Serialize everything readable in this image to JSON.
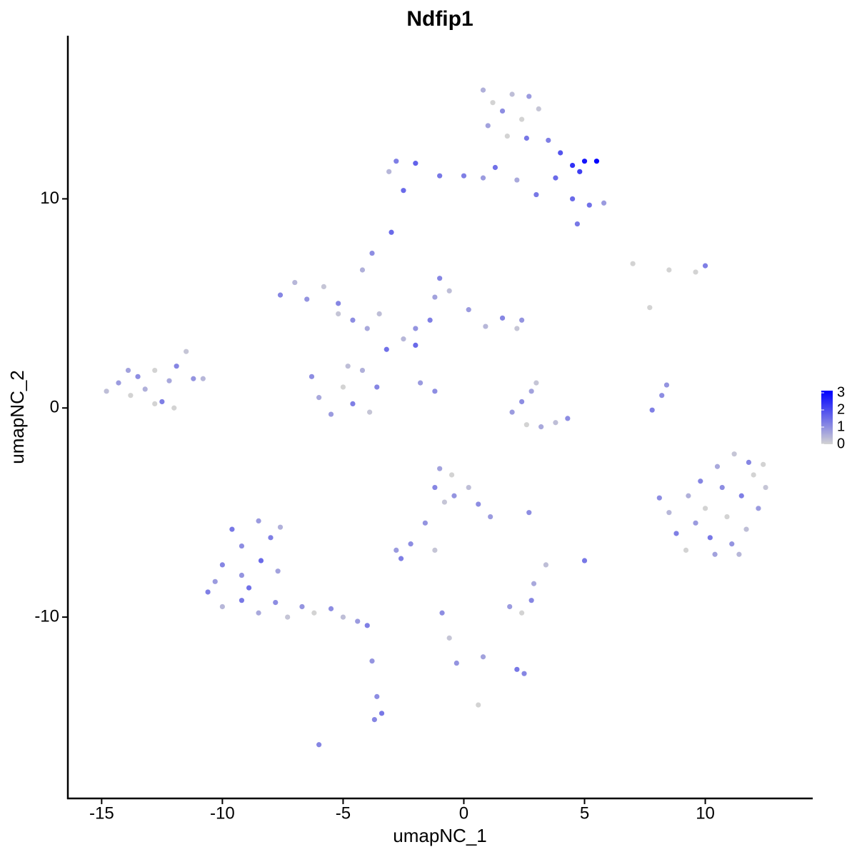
{
  "chart_data": {
    "type": "scatter",
    "title": "Ndfip1",
    "x_label": "umapNC_1",
    "y_label": "umapNC_2",
    "xlim": [
      -16.4,
      14.45
    ],
    "ylim": [
      -18.67,
      17.8
    ],
    "xticks": [
      -15,
      -10,
      -5,
      0,
      5,
      10
    ],
    "yticks": [
      -10,
      0,
      10
    ],
    "color_scale": {
      "low": "#d3d3d3",
      "high": "#0000ff",
      "lim": [
        0,
        3
      ],
      "ticks": [
        0,
        1,
        2,
        3
      ]
    },
    "x": [
      -14.8,
      -14.3,
      -13.8,
      -13.5,
      -13.2,
      -12.8,
      -12.5,
      -12.2,
      -12.8,
      -11.9,
      -11.5,
      -11.2,
      -10.8,
      -12,
      -13.9,
      0.8,
      1.2,
      1.6,
      2.0,
      2.4,
      2.7,
      3.1,
      1.0,
      1.8,
      2.6,
      3.5,
      4.0,
      4.5,
      5.0,
      5.5,
      4.8,
      3.8,
      1.3,
      0.8,
      0,
      -1,
      -2,
      -2.8,
      -3.1,
      -2.5,
      -3,
      4.5,
      5.2,
      5.8,
      4.7,
      3,
      2.2,
      -7.6,
      -7.0,
      -6.5,
      -5.8,
      -5.2,
      -4.6,
      -4.0,
      -3.5,
      -3.8,
      -4.2,
      -3.2,
      -2.5,
      -2,
      -1.4,
      -1.2,
      -1.0,
      -0.6,
      0.2,
      0.9,
      1.6,
      2.2,
      2.4,
      -6.3,
      -6.0,
      -5.5,
      -5.0,
      -4.6,
      -4.2,
      -3.9,
      -3.6,
      -4.8,
      -1.8,
      -1.2,
      -2.0,
      -5.2,
      2.0,
      2.6,
      3.2,
      3.8,
      4.3,
      2.8,
      3.0,
      2.4,
      7.8,
      8.2,
      8.4,
      8.1,
      8.5,
      8.8,
      9.2,
      9.6,
      9.8,
      10.0,
      10.2,
      10.5,
      10.7,
      10.9,
      11.1,
      11.2,
      11.5,
      11.7,
      12.0,
      12.2,
      12.5,
      11.8,
      9.3,
      10.4,
      12.4,
      11.4,
      7.0,
      8.5,
      9.6,
      10.0,
      7.7,
      -9.6,
      -9.2,
      -8.5,
      -8.0,
      -7.6,
      -10.0,
      -9.2,
      -8.4,
      -7.7,
      -10.6,
      -10.0,
      -9.2,
      -8.5,
      -7.8,
      -7.3,
      -6.7,
      -6.2,
      -5.5,
      -5.0,
      -4.4,
      -4.0,
      -8.9,
      -10.3,
      -1.0,
      -0.5,
      -1.2,
      -0.4,
      0.2,
      0.6,
      1.1,
      -0.8,
      -1.6,
      -2.2,
      -2.8,
      -2.6,
      -3.8,
      -3.6,
      -3.7,
      -3.4,
      -6.0,
      -0.6,
      -0.3,
      0.8,
      2.2,
      2.5,
      0.6,
      -0.9,
      1.9,
      2.4,
      2.8,
      2.9,
      3.4,
      5.0,
      2.7,
      -1.2
    ],
    "y": [
      0.8,
      1.2,
      0.6,
      1.5,
      0.9,
      1.8,
      0.3,
      1.3,
      0.2,
      2.0,
      2.7,
      1.4,
      1.4,
      0,
      1.8,
      15.2,
      14.6,
      14.2,
      15.0,
      13.8,
      14.9,
      14.3,
      13.5,
      13.0,
      12.9,
      12.8,
      12.2,
      11.6,
      11.8,
      11.8,
      11.3,
      11.0,
      11.5,
      11.0,
      11.1,
      11.1,
      11.7,
      11.8,
      11.3,
      10.4,
      8.4,
      10.0,
      9.7,
      9.8,
      8.8,
      10.2,
      10.9,
      5.4,
      6.0,
      5.2,
      5.8,
      5.0,
      4.2,
      3.8,
      4.5,
      7.4,
      6.6,
      2.8,
      3.3,
      3.8,
      4.2,
      5.3,
      6.2,
      5.6,
      4.7,
      3.9,
      4.3,
      3.8,
      4.2,
      1.5,
      0.5,
      -0.3,
      1.0,
      0.2,
      1.8,
      -0.2,
      1.0,
      2.0,
      1.2,
      0.8,
      3.0,
      4.5,
      -0.2,
      -0.8,
      -0.9,
      -0.7,
      -0.5,
      0.8,
      1.2,
      0.3,
      -0.1,
      0.6,
      1.1,
      -4.3,
      -5.0,
      -6.0,
      -6.8,
      -5.5,
      -3.5,
      -4.8,
      -6.2,
      -2.8,
      -3.8,
      -5.2,
      -6.5,
      -2.2,
      -4.2,
      -5.8,
      -3.2,
      -4.8,
      -3.8,
      -2.6,
      -4.2,
      -7.0,
      -2.7,
      -7.0,
      6.9,
      6.6,
      6.5,
      6.8,
      4.8,
      -5.8,
      -6.6,
      -5.4,
      -6.2,
      -5.7,
      -7.5,
      -8.0,
      -7.3,
      -7.8,
      -8.8,
      -9.5,
      -9.2,
      -9.8,
      -9.3,
      -10.0,
      -9.5,
      -9.8,
      -9.6,
      -10.0,
      -10.2,
      -10.4,
      -8.6,
      -8.3,
      -2.9,
      -3.2,
      -3.8,
      -4.2,
      -3.8,
      -4.6,
      -5.2,
      -4.5,
      -5.5,
      -6.5,
      -6.8,
      -7.2,
      -12.1,
      -13.8,
      -14.9,
      -14.6,
      -16.1,
      -11.0,
      -12.2,
      -11.9,
      -12.5,
      -12.7,
      -14.2,
      -9.8,
      -9.5,
      -9.8,
      -9.2,
      -8.4,
      -7.5,
      -7.3,
      -5.0,
      -6.8
    ],
    "expression": [
      0.3,
      0.8,
      0,
      1.0,
      0.5,
      0,
      1.2,
      0.6,
      0,
      1.1,
      0.2,
      0.9,
      0.4,
      0,
      0.7,
      0.5,
      0,
      1.0,
      0.3,
      0,
      0.8,
      0.2,
      0.7,
      0,
      1.3,
      1.2,
      1.8,
      2.3,
      2.7,
      3.0,
      2.1,
      1.5,
      1.4,
      0.8,
      1.2,
      1.3,
      1.6,
      1.2,
      0.4,
      1.5,
      1.5,
      1.5,
      1.4,
      0.8,
      1.3,
      1.3,
      0.6,
      1.1,
      0.4,
      0.9,
      0.2,
      1.1,
      1.0,
      0.6,
      0.3,
      1.0,
      0.5,
      1.4,
      0.4,
      0.9,
      1.2,
      0.7,
      1.1,
      0.3,
      0.8,
      0.4,
      1.1,
      0.2,
      0.9,
      1.0,
      0.6,
      0.8,
      0,
      1.2,
      0.5,
      0.2,
      1.1,
      0.3,
      0.8,
      1.0,
      1.5,
      0.2,
      0.8,
      0,
      0.6,
      0.3,
      1.0,
      0.7,
      0.2,
      1.0,
      1.2,
      1.0,
      0.9,
      1.0,
      0.4,
      1.2,
      0,
      0.8,
      1.1,
      0,
      1.3,
      0.6,
      1.0,
      0,
      0.9,
      0.2,
      1.2,
      0.3,
      0,
      0.8,
      0.2,
      1.1,
      0.5,
      0.7,
      0,
      0.4,
      0,
      0,
      0,
      1.2,
      0,
      1.3,
      1.0,
      0.8,
      1.2,
      0.5,
      1.1,
      0.9,
      1.5,
      0.7,
      1.2,
      0.4,
      1.3,
      0.6,
      1.0,
      0.2,
      0.9,
      0,
      1.0,
      0.3,
      0.8,
      1.2,
      1.4,
      0.8,
      0.7,
      0,
      1.1,
      0.9,
      0.3,
      1.0,
      0.8,
      0.2,
      0.9,
      1.0,
      0.8,
      1.2,
      0.9,
      1.0,
      1.1,
      1.3,
      1.1,
      0.2,
      0.9,
      0.7,
      1.3,
      1.1,
      0,
      1.0,
      0.8,
      0,
      1.1,
      0.6,
      0.3,
      1.3,
      1.0,
      0.2
    ]
  }
}
